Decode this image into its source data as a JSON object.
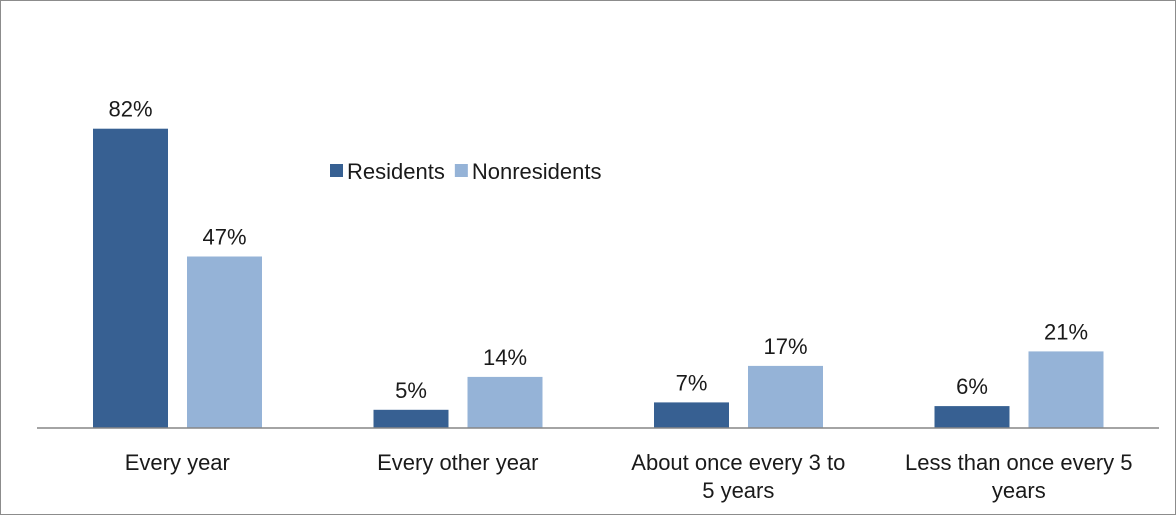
{
  "chart_data": {
    "type": "bar",
    "categories": [
      [
        "Every year"
      ],
      [
        "Every other year"
      ],
      [
        "About once every 3 to",
        "5 years"
      ],
      [
        "Less than once every 5",
        "years"
      ]
    ],
    "series": [
      {
        "name": "Residents",
        "values": [
          82,
          5,
          7,
          6
        ],
        "labels": [
          "82%",
          "5%",
          "7%",
          "6%"
        ],
        "color": "#376092"
      },
      {
        "name": "Nonresidents",
        "values": [
          47,
          14,
          17,
          21
        ],
        "labels": [
          "47%",
          "14%",
          "17%",
          "21%"
        ],
        "color": "#95b3d7"
      }
    ],
    "value_format": "percent",
    "ylim": [
      0,
      100
    ],
    "grid": false,
    "legend_position": "top-center",
    "axis_color": "#868686"
  }
}
